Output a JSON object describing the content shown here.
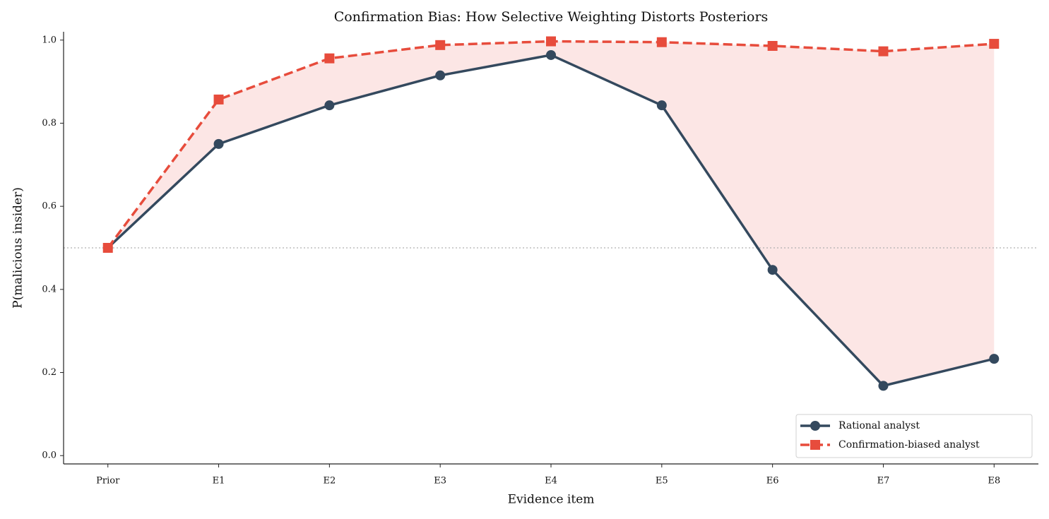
{
  "chart_data": {
    "type": "line",
    "title": "Confirmation Bias: How Selective Weighting Distorts Posteriors",
    "x_label": "Evidence item",
    "y_label": "P(malicious insider)",
    "categories": [
      "Prior",
      "E1",
      "E2",
      "E3",
      "E4",
      "E5",
      "E6",
      "E7",
      "E8"
    ],
    "series": [
      {
        "name": "Rational analyst",
        "color": "#34495e",
        "marker": "circle",
        "linestyle": "solid",
        "values": [
          0.5,
          0.75,
          0.843,
          0.915,
          0.964,
          0.843,
          0.447,
          0.168,
          0.233
        ]
      },
      {
        "name": "Confirmation-biased analyst",
        "color": "#e74c3c",
        "marker": "square",
        "linestyle": "dashed",
        "values": [
          0.5,
          0.857,
          0.956,
          0.988,
          0.997,
          0.995,
          0.986,
          0.973,
          0.991
        ]
      }
    ],
    "fill_between_color": "#fce6e5",
    "hline": 0.5,
    "ylim": [
      -0.02,
      1.02
    ],
    "yticks": [
      {
        "value": 0,
        "label": "0.0"
      },
      0.2,
      0.4,
      0.6,
      0.8,
      {
        "value": 1,
        "label": "1.0"
      }
    ],
    "legend": "lower right"
  }
}
